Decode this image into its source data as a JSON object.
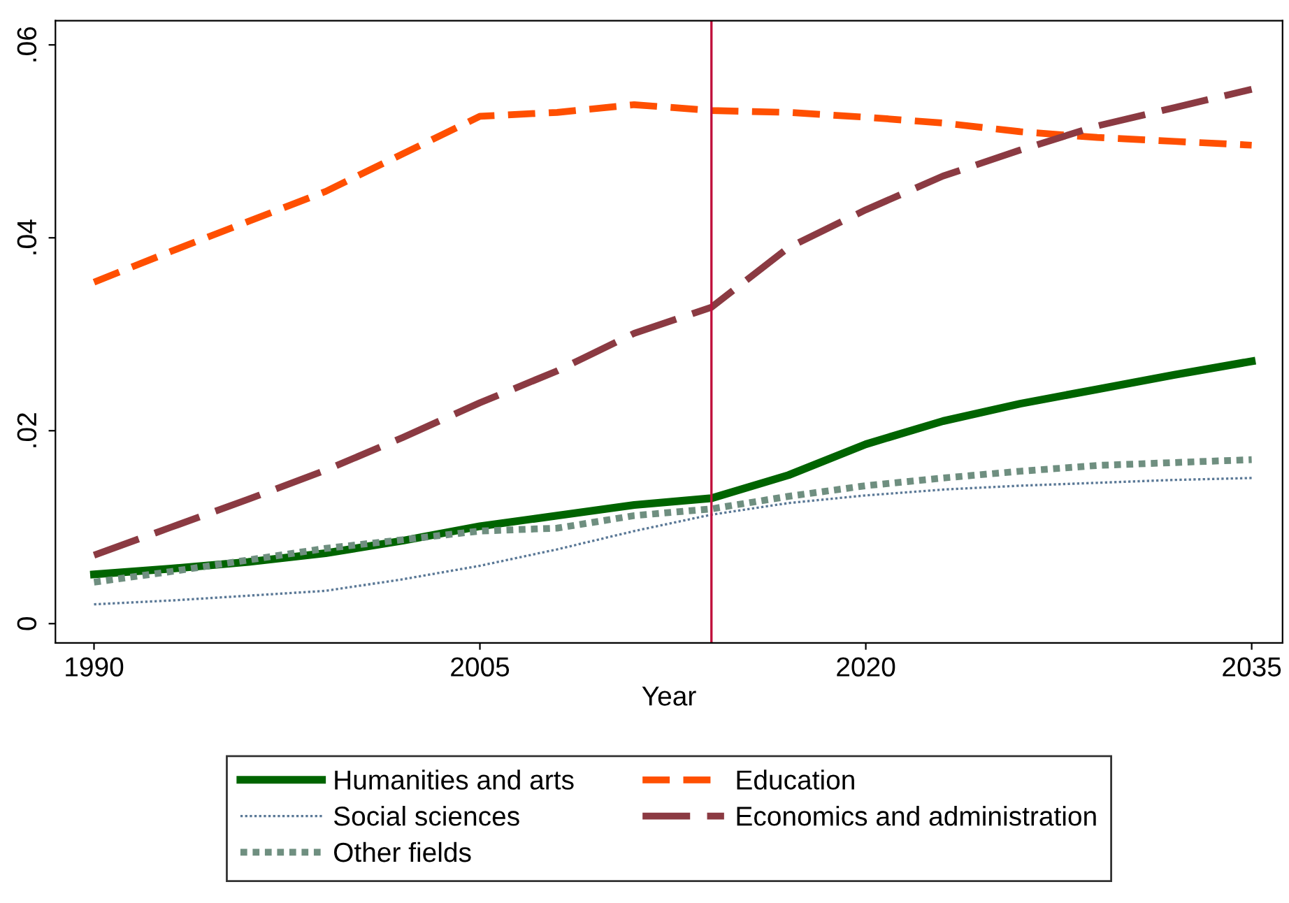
{
  "chart_data": {
    "type": "line",
    "xlabel": "Year",
    "x": [
      1990,
      1993,
      1996,
      1999,
      2002,
      2005,
      2008,
      2011,
      2014,
      2017,
      2020,
      2023,
      2026,
      2029,
      2032,
      2035
    ],
    "series": [
      {
        "name": "Humanities and arts",
        "color": "#006400",
        "line_style": "solid",
        "values": [
          0.0051,
          0.0057,
          0.0064,
          0.0073,
          0.0086,
          0.0101,
          0.0112,
          0.0123,
          0.013,
          0.0154,
          0.0186,
          0.021,
          0.0228,
          0.0243,
          0.0258,
          0.0272
        ]
      },
      {
        "name": "Education",
        "color": "#ff4f00",
        "line_style": "dashed",
        "values": [
          0.0354,
          0.0386,
          0.0417,
          0.0448,
          0.0487,
          0.0526,
          0.053,
          0.0538,
          0.0532,
          0.053,
          0.0525,
          0.0519,
          0.051,
          0.0504,
          0.05,
          0.0496
        ]
      },
      {
        "name": "Social sciences",
        "color": "#5a7896",
        "line_style": "dotted",
        "values": [
          0.002,
          0.0024,
          0.0029,
          0.0034,
          0.0046,
          0.006,
          0.0077,
          0.0096,
          0.0113,
          0.0125,
          0.0133,
          0.0139,
          0.0143,
          0.0146,
          0.0149,
          0.0151
        ]
      },
      {
        "name": "Economics and administration",
        "color": "#8b3a42",
        "line_style": "dashed",
        "values": [
          0.0071,
          0.01,
          0.0129,
          0.0159,
          0.0193,
          0.0229,
          0.0262,
          0.0301,
          0.0328,
          0.039,
          0.0429,
          0.0464,
          0.0491,
          0.0516,
          0.0535,
          0.0554
        ]
      },
      {
        "name": "Other fields",
        "color": "#6f8f80",
        "line_style": "dotted",
        "values": [
          0.0043,
          0.0054,
          0.0066,
          0.0078,
          0.0087,
          0.0096,
          0.0099,
          0.0112,
          0.0119,
          0.0132,
          0.0143,
          0.0151,
          0.0158,
          0.0164,
          0.0167,
          0.017
        ]
      }
    ],
    "xlim": [
      1988.5,
      2036.2
    ],
    "ylim": [
      -0.002,
      0.0625
    ],
    "xticks": [
      1990,
      2005,
      2020,
      2035
    ],
    "yticks": [
      {
        "value": 0,
        "label": "0"
      },
      {
        "value": 0.02,
        "label": ".02"
      },
      {
        "value": 0.04,
        "label": ".04"
      },
      {
        "value": 0.06,
        "label": ".06"
      }
    ],
    "ref_lines": [
      {
        "axis": "x",
        "value": 2014,
        "color": "#c0103c"
      }
    ],
    "grid": false,
    "legend": "bottom",
    "marker": "none"
  }
}
